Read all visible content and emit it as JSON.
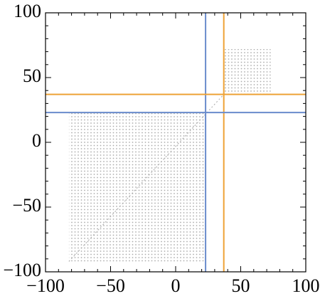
{
  "chart_data": {
    "type": "density",
    "xlim": [
      -100,
      100
    ],
    "ylim": [
      -100,
      100
    ],
    "xticks": [
      {
        "value": -100,
        "label": "−100"
      },
      {
        "value": -50,
        "label": "−50"
      },
      0,
      50,
      100
    ],
    "yticks": [
      {
        "value": -100,
        "label": "−100"
      },
      {
        "value": -50,
        "label": "−50"
      },
      0,
      50,
      100
    ],
    "regions": [
      {
        "xlim": [
          -82,
          23
        ],
        "ylim": [
          -92,
          23
        ]
      },
      {
        "xlim": [
          37,
          73
        ],
        "ylim": [
          37,
          72
        ]
      }
    ],
    "vlines": [
      {
        "value": 23,
        "color": "#6a8ccc"
      },
      {
        "value": 37,
        "color": "#eea236"
      }
    ],
    "hlines": [
      {
        "value": 23,
        "color": "#6a8ccc"
      },
      {
        "value": 37,
        "color": "#eea236"
      }
    ]
  }
}
